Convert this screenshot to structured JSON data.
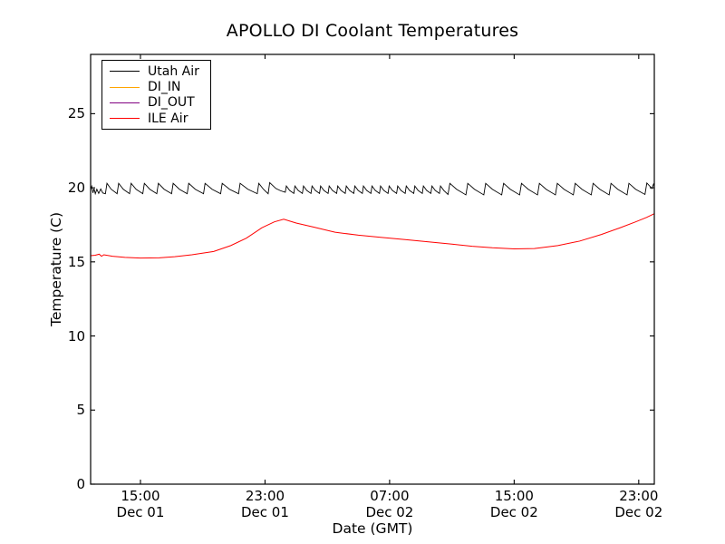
{
  "chart_data": {
    "type": "line",
    "title": "APOLLO DI Coolant Temperatures",
    "xlabel": "Date (GMT)",
    "ylabel": "Temperature (C)",
    "x_unit": "hours since Dec 01 00:00 GMT",
    "xlim": [
      11.8,
      48.0
    ],
    "ylim": [
      0,
      29
    ],
    "y_ticks": [
      0,
      5,
      10,
      15,
      20,
      25
    ],
    "x_ticks": [
      {
        "value": 15,
        "time": "15:00",
        "date": "Dec 01"
      },
      {
        "value": 23,
        "time": "23:00",
        "date": "Dec 01"
      },
      {
        "value": 31,
        "time": "07:00",
        "date": "Dec 02"
      },
      {
        "value": 39,
        "time": "15:00",
        "date": "Dec 02"
      },
      {
        "value": 47,
        "time": "23:00",
        "date": "Dec 02"
      }
    ],
    "grid": false,
    "legend_position": "upper left",
    "frame_color": "#000000",
    "background_color": "#ffffff",
    "series": [
      {
        "name": "Utah Air",
        "color": "#000000",
        "line_width": 0.9,
        "points": [
          [
            11.8,
            19.9
          ],
          [
            11.87,
            20.1
          ],
          [
            11.95,
            19.65
          ],
          [
            12.02,
            19.95
          ],
          [
            12.1,
            19.6
          ],
          [
            12.2,
            19.9
          ],
          [
            12.32,
            19.62
          ],
          [
            12.45,
            19.92
          ],
          [
            12.58,
            19.65
          ],
          [
            12.75,
            19.6
          ],
          [
            12.85,
            20.3
          ],
          [
            13.12,
            19.9
          ],
          [
            13.5,
            19.6
          ],
          [
            13.6,
            20.3
          ],
          [
            13.9,
            19.9
          ],
          [
            14.3,
            19.6
          ],
          [
            14.4,
            20.3
          ],
          [
            14.72,
            19.9
          ],
          [
            15.15,
            19.6
          ],
          [
            15.25,
            20.3
          ],
          [
            15.6,
            19.9
          ],
          [
            16.05,
            19.6
          ],
          [
            16.15,
            20.3
          ],
          [
            16.52,
            19.9
          ],
          [
            17.0,
            19.6
          ],
          [
            17.1,
            20.3
          ],
          [
            17.5,
            19.9
          ],
          [
            18.0,
            19.6
          ],
          [
            18.1,
            20.3
          ],
          [
            18.52,
            19.9
          ],
          [
            19.05,
            19.6
          ],
          [
            19.15,
            20.3
          ],
          [
            19.6,
            19.9
          ],
          [
            20.15,
            19.6
          ],
          [
            20.25,
            20.3
          ],
          [
            20.72,
            19.9
          ],
          [
            21.3,
            19.6
          ],
          [
            21.4,
            20.3
          ],
          [
            21.9,
            19.9
          ],
          [
            22.5,
            19.6
          ],
          [
            22.6,
            20.3
          ],
          [
            22.9,
            19.9
          ],
          [
            23.2,
            19.6
          ],
          [
            23.3,
            20.35
          ],
          [
            23.7,
            19.95
          ],
          [
            24.0,
            19.8
          ],
          [
            24.3,
            19.7
          ],
          [
            24.37,
            20.12
          ],
          [
            24.58,
            19.82
          ],
          [
            24.85,
            19.62
          ],
          [
            24.92,
            20.12
          ],
          [
            25.13,
            19.82
          ],
          [
            25.4,
            19.62
          ],
          [
            25.47,
            20.12
          ],
          [
            25.68,
            19.82
          ],
          [
            25.95,
            19.62
          ],
          [
            26.02,
            20.12
          ],
          [
            26.23,
            19.82
          ],
          [
            26.5,
            19.62
          ],
          [
            26.57,
            20.12
          ],
          [
            26.78,
            19.82
          ],
          [
            27.05,
            19.62
          ],
          [
            27.12,
            20.12
          ],
          [
            27.33,
            19.82
          ],
          [
            27.6,
            19.62
          ],
          [
            27.67,
            20.12
          ],
          [
            27.88,
            19.82
          ],
          [
            28.15,
            19.62
          ],
          [
            28.22,
            20.12
          ],
          [
            28.43,
            19.82
          ],
          [
            28.7,
            19.62
          ],
          [
            28.77,
            20.12
          ],
          [
            28.98,
            19.82
          ],
          [
            29.25,
            19.62
          ],
          [
            29.32,
            20.12
          ],
          [
            29.53,
            19.82
          ],
          [
            29.8,
            19.62
          ],
          [
            29.87,
            20.12
          ],
          [
            30.08,
            19.82
          ],
          [
            30.35,
            19.62
          ],
          [
            30.42,
            20.12
          ],
          [
            30.63,
            19.82
          ],
          [
            30.9,
            19.62
          ],
          [
            30.97,
            20.12
          ],
          [
            31.18,
            19.82
          ],
          [
            31.45,
            19.62
          ],
          [
            31.52,
            20.12
          ],
          [
            31.73,
            19.82
          ],
          [
            32.0,
            19.62
          ],
          [
            32.07,
            20.12
          ],
          [
            32.28,
            19.82
          ],
          [
            32.55,
            19.62
          ],
          [
            32.62,
            20.12
          ],
          [
            32.83,
            19.82
          ],
          [
            33.1,
            19.62
          ],
          [
            33.17,
            20.12
          ],
          [
            33.38,
            19.82
          ],
          [
            33.65,
            19.62
          ],
          [
            33.72,
            20.12
          ],
          [
            33.93,
            19.82
          ],
          [
            34.2,
            19.62
          ],
          [
            34.27,
            20.12
          ],
          [
            34.48,
            19.82
          ],
          [
            34.75,
            19.55
          ],
          [
            34.87,
            20.3
          ],
          [
            35.3,
            19.9
          ],
          [
            35.9,
            19.52
          ],
          [
            36.02,
            20.3
          ],
          [
            36.45,
            19.9
          ],
          [
            37.05,
            19.52
          ],
          [
            37.17,
            20.3
          ],
          [
            37.6,
            19.9
          ],
          [
            38.2,
            19.52
          ],
          [
            38.32,
            20.3
          ],
          [
            38.75,
            19.9
          ],
          [
            39.35,
            19.52
          ],
          [
            39.47,
            20.3
          ],
          [
            39.9,
            19.9
          ],
          [
            40.5,
            19.52
          ],
          [
            40.62,
            20.3
          ],
          [
            41.05,
            19.9
          ],
          [
            41.65,
            19.52
          ],
          [
            41.77,
            20.3
          ],
          [
            42.2,
            19.9
          ],
          [
            42.8,
            19.52
          ],
          [
            42.92,
            20.3
          ],
          [
            43.35,
            19.9
          ],
          [
            43.95,
            19.52
          ],
          [
            44.07,
            20.3
          ],
          [
            44.5,
            19.9
          ],
          [
            45.1,
            19.52
          ],
          [
            45.22,
            20.3
          ],
          [
            45.65,
            19.9
          ],
          [
            46.25,
            19.52
          ],
          [
            46.37,
            20.3
          ],
          [
            46.8,
            19.9
          ],
          [
            47.4,
            19.55
          ],
          [
            47.52,
            20.32
          ],
          [
            47.85,
            19.95
          ],
          [
            47.95,
            20.25
          ],
          [
            48.0,
            20.15
          ]
        ]
      },
      {
        "name": "DI_IN",
        "color": "#ffa500",
        "line_width": 1.1,
        "points": []
      },
      {
        "name": "DI_OUT",
        "color": "#800080",
        "line_width": 1.1,
        "points": []
      },
      {
        "name": "ILE Air",
        "color": "#ff0000",
        "line_width": 1.0,
        "points": [
          [
            11.8,
            15.42
          ],
          [
            12.1,
            15.45
          ],
          [
            12.35,
            15.52
          ],
          [
            12.5,
            15.38
          ],
          [
            12.65,
            15.48
          ],
          [
            13.2,
            15.38
          ],
          [
            14.0,
            15.3
          ],
          [
            15.0,
            15.26
          ],
          [
            16.2,
            15.27
          ],
          [
            17.2,
            15.35
          ],
          [
            18.3,
            15.48
          ],
          [
            19.7,
            15.7
          ],
          [
            20.8,
            16.1
          ],
          [
            21.8,
            16.6
          ],
          [
            22.8,
            17.3
          ],
          [
            23.6,
            17.7
          ],
          [
            24.2,
            17.88
          ],
          [
            25.0,
            17.62
          ],
          [
            26.1,
            17.35
          ],
          [
            27.5,
            17.0
          ],
          [
            29.0,
            16.8
          ],
          [
            30.5,
            16.65
          ],
          [
            32.0,
            16.5
          ],
          [
            33.5,
            16.35
          ],
          [
            35.0,
            16.2
          ],
          [
            36.3,
            16.05
          ],
          [
            37.6,
            15.95
          ],
          [
            39.0,
            15.88
          ],
          [
            40.3,
            15.9
          ],
          [
            41.8,
            16.1
          ],
          [
            43.2,
            16.4
          ],
          [
            44.6,
            16.85
          ],
          [
            45.8,
            17.3
          ],
          [
            46.8,
            17.7
          ],
          [
            47.5,
            18.0
          ],
          [
            48.0,
            18.25
          ]
        ]
      }
    ]
  }
}
